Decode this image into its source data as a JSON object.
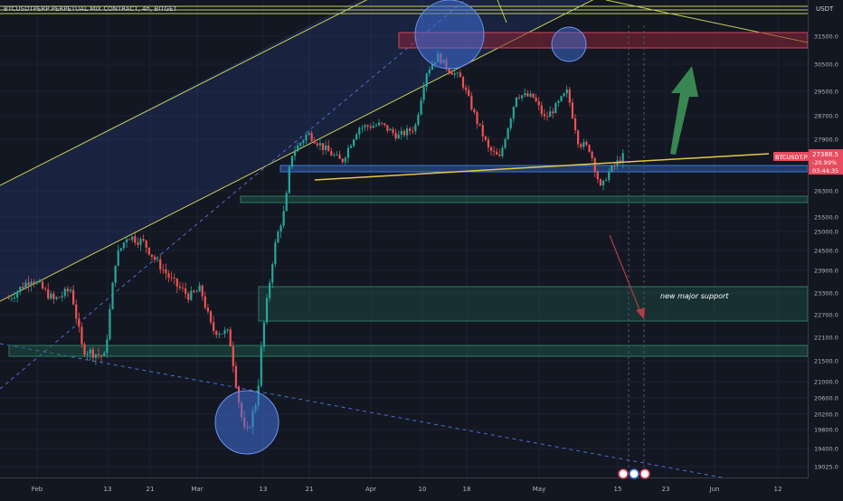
{
  "header": {
    "symbol_title": "BTCUSDTPERP PERPETUAL MIX CONTRACT, 4h, BITGET",
    "currency": "USDT"
  },
  "colors": {
    "background": "#131722",
    "grid": "#1e2230",
    "up_candle": "#26a69a",
    "down_candle": "#ef5350",
    "channel": "#c5cf5a",
    "trendline": "#e3c64a",
    "support_zone": "#1f5f4d",
    "resistance_zone": "#8a2437",
    "circle_fill": "#3f6fd8",
    "arrow_up": "#3f9b5b",
    "arrow_down": "#b13c46",
    "price_label_bg": "#e84a5f"
  },
  "chart_data": {
    "type": "candlestick",
    "title": "BTCUSDTPERP PERPETUAL MIX CONTRACT, 4h, BITGET",
    "ylabel": "USDT",
    "ylim": [
      18700,
      32350
    ],
    "y_ticks": [
      "31500.0",
      "30500.0",
      "29500.0",
      "28700.0",
      "27900.0",
      "26300.0",
      "25500.0",
      "25000.0",
      "24500.0",
      "23900.0",
      "23300.0",
      "22700.0",
      "22100.0",
      "21500.0",
      "21000.0",
      "20600.0",
      "20200.0",
      "19800.0",
      "19400.0",
      "19025.0"
    ],
    "x_ticks": [
      "Feb",
      "13",
      "21",
      "Mar",
      "13",
      "21",
      "Apr",
      "10",
      "18",
      "May",
      "15",
      "23",
      "Jun",
      "12"
    ],
    "price_series": [
      [
        "2023-01-27",
        23150
      ],
      [
        "2023-01-31",
        23700
      ],
      [
        "2023-02-04",
        23100
      ],
      [
        "2023-02-07",
        23400
      ],
      [
        "2023-02-09",
        21800
      ],
      [
        "2023-02-11",
        21700
      ],
      [
        "2023-02-13",
        21600
      ],
      [
        "2023-02-15",
        24300
      ],
      [
        "2023-02-17",
        24900
      ],
      [
        "2023-02-20",
        24700
      ],
      [
        "2023-02-22",
        24200
      ],
      [
        "2023-02-25",
        23600
      ],
      [
        "2023-02-28",
        23200
      ],
      [
        "2023-03-02",
        23400
      ],
      [
        "2023-03-04",
        22300
      ],
      [
        "2023-03-07",
        22200
      ],
      [
        "2023-03-09",
        20300
      ],
      [
        "2023-03-10",
        19600
      ],
      [
        "2023-03-12",
        20600
      ],
      [
        "2023-03-13",
        22200
      ],
      [
        "2023-03-15",
        24500
      ],
      [
        "2023-03-17",
        25800
      ],
      [
        "2023-03-18",
        27400
      ],
      [
        "2023-03-21",
        28100
      ],
      [
        "2023-03-24",
        27600
      ],
      [
        "2023-03-27",
        27200
      ],
      [
        "2023-03-30",
        28300
      ],
      [
        "2023-04-03",
        28400
      ],
      [
        "2023-04-06",
        28000
      ],
      [
        "2023-04-09",
        28300
      ],
      [
        "2023-04-11",
        30200
      ],
      [
        "2023-04-13",
        30800
      ],
      [
        "2023-04-15",
        30300
      ],
      [
        "2023-04-17",
        30000
      ],
      [
        "2023-04-20",
        28500
      ],
      [
        "2023-04-22",
        27600
      ],
      [
        "2023-04-24",
        27300
      ],
      [
        "2023-04-27",
        29400
      ],
      [
        "2023-04-30",
        29300
      ],
      [
        "2023-05-02",
        28600
      ],
      [
        "2023-05-04",
        29000
      ],
      [
        "2023-05-06",
        29500
      ],
      [
        "2023-05-08",
        27800
      ],
      [
        "2023-05-10",
        27600
      ],
      [
        "2023-05-12",
        26300
      ],
      [
        "2023-05-13",
        26800
      ],
      [
        "2023-05-15",
        27200
      ],
      [
        "2023-05-16",
        27388.5
      ]
    ],
    "current_price": {
      "label": "BTCUSDT.P",
      "value": "27388.5",
      "change": "-20.99%",
      "countdown": "03:44:35"
    },
    "annotations": [
      {
        "type": "text",
        "text": "new major support",
        "x": "2023-05-27",
        "y": 23300
      },
      {
        "type": "zone",
        "role": "resistance",
        "x": [
          "2023-03-25",
          "2023-06-15"
        ],
        "y": [
          31100,
          31700
        ]
      },
      {
        "type": "zone",
        "role": "support",
        "x": [
          "2023-03-15",
          "2023-06-15"
        ],
        "y": [
          22600,
          23500
        ]
      },
      {
        "type": "zone",
        "role": "support",
        "x": [
          "2023-01-27",
          "2023-06-15"
        ],
        "y": [
          21550,
          21900
        ]
      },
      {
        "type": "zone",
        "role": "support",
        "x": [
          "2023-03-14",
          "2023-06-15"
        ],
        "y": [
          25850,
          26150
        ]
      },
      {
        "type": "zone",
        "role": "support",
        "x": [
          "2023-03-18",
          "2023-06-15"
        ],
        "y": [
          26750,
          26980
        ]
      },
      {
        "type": "trendline",
        "from": [
          "2023-03-20",
          26500
        ],
        "to": [
          "2023-06-07",
          27700
        ]
      },
      {
        "type": "highlight-circle",
        "x": "2023-03-11",
        "y": 20000
      },
      {
        "type": "highlight-circle",
        "x": "2023-04-14",
        "y": 31350
      },
      {
        "type": "highlight-circle",
        "x": "2023-05-04",
        "y": 30900
      },
      {
        "type": "arrow",
        "direction": "up",
        "from": [
          "2023-05-26",
          27700
        ],
        "to": [
          "2023-05-30",
          30700
        ]
      },
      {
        "type": "arrow",
        "direction": "down",
        "from": [
          "2023-05-15",
          25000
        ],
        "to": [
          "2023-05-19",
          22700
        ]
      }
    ]
  }
}
